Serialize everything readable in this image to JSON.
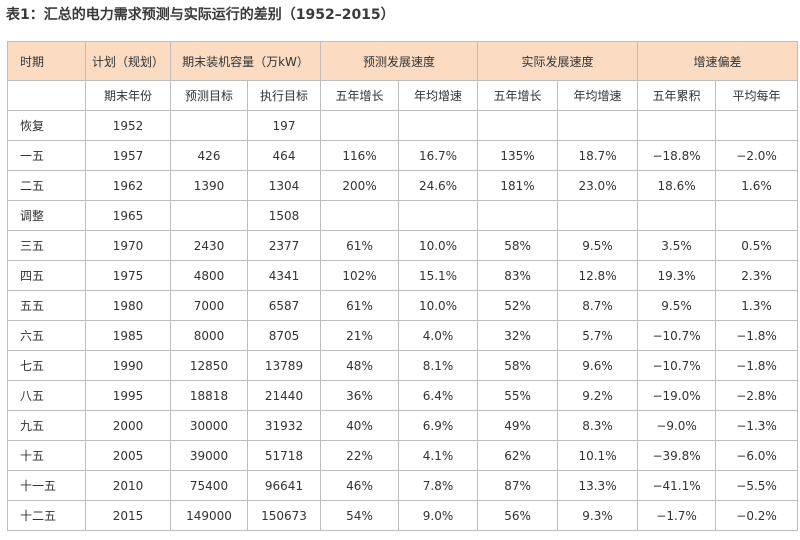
{
  "title": "表1：汇总的电力需求预测与实际运行的差别（1952–2015）",
  "table": {
    "header1": [
      {
        "text": "时期",
        "span": 1
      },
      {
        "text": "计划（规划）",
        "span": 1
      },
      {
        "text": "期末装机容量（万kW）",
        "span": 2
      },
      {
        "text": "预测发展速度",
        "span": 2
      },
      {
        "text": "实际发展速度",
        "span": 2
      },
      {
        "text": "增速偏差",
        "span": 2
      }
    ],
    "header2": [
      null,
      "期末年份",
      "预测目标",
      "执行目标",
      "五年增长",
      "年均增速",
      "五年增长",
      "年均增速",
      "五年累积",
      "平均每年"
    ],
    "rows": [
      [
        "恢复",
        "1952",
        null,
        "197",
        null,
        null,
        null,
        null,
        null,
        null
      ],
      [
        "一五",
        "1957",
        "426",
        "464",
        "116%",
        "16.7%",
        "135%",
        "18.7%",
        "−18.8%",
        "−2.0%"
      ],
      [
        "二五",
        "1962",
        "1390",
        "1304",
        "200%",
        "24.6%",
        "181%",
        "23.0%",
        "18.6%",
        "1.6%"
      ],
      [
        "调整",
        "1965",
        null,
        "1508",
        null,
        null,
        null,
        null,
        null,
        null
      ],
      [
        "三五",
        "1970",
        "2430",
        "2377",
        "61%",
        "10.0%",
        "58%",
        "9.5%",
        "3.5%",
        "0.5%"
      ],
      [
        "四五",
        "1975",
        "4800",
        "4341",
        "102%",
        "15.1%",
        "83%",
        "12.8%",
        "19.3%",
        "2.3%"
      ],
      [
        "五五",
        "1980",
        "7000",
        "6587",
        "61%",
        "10.0%",
        "52%",
        "8.7%",
        "9.5%",
        "1.3%"
      ],
      [
        "六五",
        "1985",
        "8000",
        "8705",
        "21%",
        "4.0%",
        "32%",
        "5.7%",
        "−10.7%",
        "−1.8%"
      ],
      [
        "七五",
        "1990",
        "12850",
        "13789",
        "48%",
        "8.1%",
        "58%",
        "9.6%",
        "−10.7%",
        "−1.8%"
      ],
      [
        "八五",
        "1995",
        "18818",
        "21440",
        "36%",
        "6.4%",
        "55%",
        "9.2%",
        "−19.0%",
        "−2.8%"
      ],
      [
        "九五",
        "2000",
        "30000",
        "31932",
        "40%",
        "6.9%",
        "49%",
        "8.3%",
        "−9.0%",
        "−1.3%"
      ],
      [
        "十五",
        "2005",
        "39000",
        "51718",
        "22%",
        "4.1%",
        "62%",
        "10.1%",
        "−39.8%",
        "−6.0%"
      ],
      [
        "十一五",
        "2010",
        "75400",
        "96641",
        "46%",
        "7.8%",
        "87%",
        "13.3%",
        "−41.1%",
        "−5.5%"
      ],
      [
        "十二五",
        "2015",
        "149000",
        "150673",
        "54%",
        "9.0%",
        "56%",
        "9.3%",
        "−1.7%",
        "−0.2%"
      ]
    ]
  }
}
